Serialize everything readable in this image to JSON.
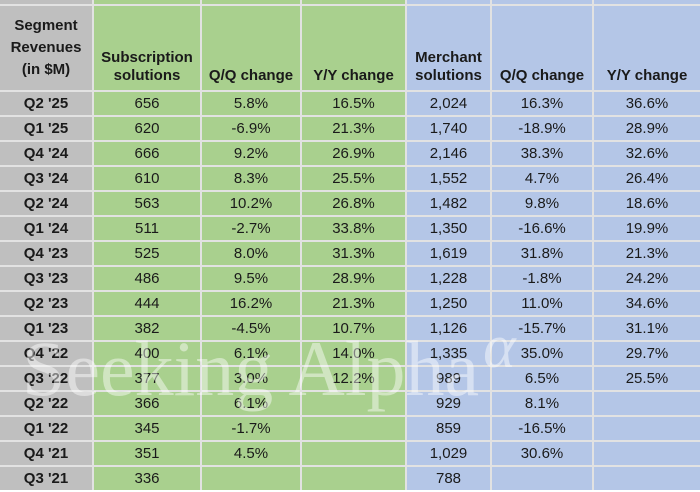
{
  "table": {
    "corner_header": "Segment Revenues (in $M)",
    "column_headers": [
      {
        "label": "Subscription solutions",
        "group": "subscription"
      },
      {
        "label": "Q/Q change",
        "group": "subscription"
      },
      {
        "label": "Y/Y change",
        "group": "subscription"
      },
      {
        "label": "Merchant solutions",
        "group": "merchant"
      },
      {
        "label": "Q/Q change",
        "group": "merchant"
      },
      {
        "label": "Y/Y change",
        "group": "merchant"
      }
    ],
    "rows": [
      [
        "Q2 '25",
        "656",
        "5.8%",
        "16.5%",
        "2,024",
        "16.3%",
        "36.6%"
      ],
      [
        "Q1 '25",
        "620",
        "-6.9%",
        "21.3%",
        "1,740",
        "-18.9%",
        "28.9%"
      ],
      [
        "Q4 '24",
        "666",
        "9.2%",
        "26.9%",
        "2,146",
        "38.3%",
        "32.6%"
      ],
      [
        "Q3 '24",
        "610",
        "8.3%",
        "25.5%",
        "1,552",
        "4.7%",
        "26.4%"
      ],
      [
        "Q2 '24",
        "563",
        "10.2%",
        "26.8%",
        "1,482",
        "9.8%",
        "18.6%"
      ],
      [
        "Q1 '24",
        "511",
        "-2.7%",
        "33.8%",
        "1,350",
        "-16.6%",
        "19.9%"
      ],
      [
        "Q4 '23",
        "525",
        "8.0%",
        "31.3%",
        "1,619",
        "31.8%",
        "21.3%"
      ],
      [
        "Q3 '23",
        "486",
        "9.5%",
        "28.9%",
        "1,228",
        "-1.8%",
        "24.2%"
      ],
      [
        "Q2 '23",
        "444",
        "16.2%",
        "21.3%",
        "1,250",
        "11.0%",
        "34.6%"
      ],
      [
        "Q1 '23",
        "382",
        "-4.5%",
        "10.7%",
        "1,126",
        "-15.7%",
        "31.1%"
      ],
      [
        "Q4 '22",
        "400",
        "6.1%",
        "14.0%",
        "1,335",
        "35.0%",
        "29.7%"
      ],
      [
        "Q3 '22",
        "377",
        "3.0%",
        "12.2%",
        "989",
        "6.5%",
        "25.5%"
      ],
      [
        "Q2 '22",
        "366",
        "6.1%",
        "",
        "929",
        "8.1%",
        ""
      ],
      [
        "Q1 '22",
        "345",
        "-1.7%",
        "",
        "859",
        "-16.5%",
        ""
      ],
      [
        "Q4 '21",
        "351",
        "4.5%",
        "",
        "1,029",
        "30.6%",
        ""
      ],
      [
        "Q3 '21",
        "336",
        "",
        "",
        "788",
        "",
        ""
      ]
    ]
  },
  "watermark": {
    "text": "Seeking Alpha",
    "symbol": "α"
  },
  "colors": {
    "label_column_fill": "#BFBFBF",
    "subscription_fill": "#A9D08E",
    "merchant_fill": "#B4C6E7",
    "gridline": "#E2E2E2",
    "text": "#1A1A1A"
  },
  "chart_data": {
    "type": "table",
    "title": "Segment Revenues (in $M)",
    "categories": [
      "Q2 '25",
      "Q1 '25",
      "Q4 '24",
      "Q3 '24",
      "Q2 '24",
      "Q1 '24",
      "Q4 '23",
      "Q3 '23",
      "Q2 '23",
      "Q1 '23",
      "Q4 '22",
      "Q3 '22",
      "Q2 '22",
      "Q1 '22",
      "Q4 '21",
      "Q3 '21"
    ],
    "series": [
      {
        "name": "Subscription solutions revenue ($M)",
        "values": [
          656,
          620,
          666,
          610,
          563,
          511,
          525,
          486,
          444,
          382,
          400,
          377,
          366,
          345,
          351,
          336
        ]
      },
      {
        "name": "Subscription solutions Q/Q change (%)",
        "values": [
          5.8,
          -6.9,
          9.2,
          8.3,
          10.2,
          -2.7,
          8.0,
          9.5,
          16.2,
          -4.5,
          6.1,
          3.0,
          6.1,
          -1.7,
          4.5,
          null
        ]
      },
      {
        "name": "Subscription solutions Y/Y change (%)",
        "values": [
          16.5,
          21.3,
          26.9,
          25.5,
          26.8,
          33.8,
          31.3,
          28.9,
          21.3,
          10.7,
          14.0,
          12.2,
          null,
          null,
          null,
          null
        ]
      },
      {
        "name": "Merchant solutions revenue ($M)",
        "values": [
          2024,
          1740,
          2146,
          1552,
          1482,
          1350,
          1619,
          1228,
          1250,
          1126,
          1335,
          989,
          929,
          859,
          1029,
          788
        ]
      },
      {
        "name": "Merchant solutions Q/Q change (%)",
        "values": [
          16.3,
          -18.9,
          38.3,
          4.7,
          9.8,
          -16.6,
          31.8,
          -1.8,
          11.0,
          -15.7,
          35.0,
          6.5,
          8.1,
          -16.5,
          30.6,
          null
        ]
      },
      {
        "name": "Merchant solutions Y/Y change (%)",
        "values": [
          36.6,
          28.9,
          32.6,
          26.4,
          18.6,
          19.9,
          21.3,
          24.2,
          34.6,
          31.1,
          29.7,
          25.5,
          null,
          null,
          null,
          null
        ]
      }
    ]
  }
}
